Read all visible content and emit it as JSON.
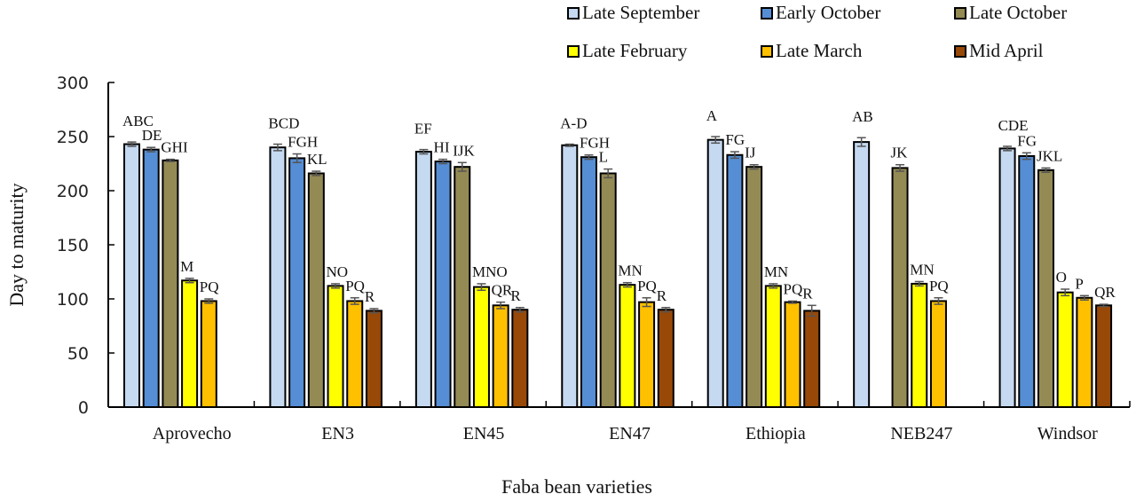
{
  "chart_data": {
    "type": "bar",
    "title": "",
    "xlabel": "Faba bean varieties",
    "ylabel": "Day to maturity",
    "ylim": [
      0,
      300
    ],
    "yticks": [
      "0",
      "50",
      "100",
      "150",
      "200",
      "250",
      "300"
    ],
    "grid": false,
    "legend_position": "top-right",
    "categories": [
      "Aprovecho",
      "EN3",
      "EN45",
      "EN47",
      "Ethiopia",
      "NEB247",
      "Windsor"
    ],
    "series": [
      {
        "name": "Late September",
        "color": "#c5d9f1",
        "values": [
          243,
          240,
          236,
          242,
          247,
          245,
          239
        ],
        "errors": [
          2,
          3,
          2,
          1,
          3,
          4,
          2
        ],
        "letters": [
          "ABC",
          "BCD",
          "EF",
          "A-D",
          "A",
          "AB",
          "CDE"
        ]
      },
      {
        "name": "Early October",
        "color": "#558ed5",
        "values": [
          238,
          230,
          227,
          231,
          233,
          null,
          232
        ],
        "errors": [
          2,
          4,
          2,
          2,
          3,
          null,
          3
        ],
        "letters": [
          "DE",
          "FGH",
          "HI",
          "FGH",
          "FG",
          "",
          "FG"
        ]
      },
      {
        "name": "Late October",
        "color": "#948a54",
        "values": [
          228,
          216,
          222,
          216,
          222,
          221,
          219
        ],
        "errors": [
          1,
          2,
          4,
          4,
          2,
          3,
          2
        ],
        "letters": [
          "GHI",
          "KL",
          "IJK",
          "L",
          "IJ",
          "JK",
          "JKL"
        ]
      },
      {
        "name": "Late February",
        "color": "#ffff00",
        "values": [
          117,
          112,
          111,
          113,
          112,
          114,
          106
        ],
        "errors": [
          2,
          2,
          3,
          2,
          2,
          2,
          3
        ],
        "letters": [
          "M",
          "NO",
          "MNO",
          "MN",
          "MN",
          "MN",
          "O"
        ]
      },
      {
        "name": "Late March",
        "color": "#ffc000",
        "values": [
          98,
          98,
          94,
          97,
          97,
          98,
          101
        ],
        "errors": [
          2,
          3,
          3,
          4,
          1,
          3,
          2
        ],
        "letters": [
          "PQ",
          "PQ",
          "QR",
          "PQ",
          "PQ",
          "PQ",
          "P"
        ]
      },
      {
        "name": "Mid April",
        "color": "#984807",
        "values": [
          null,
          89,
          90,
          90,
          89,
          null,
          94
        ],
        "errors": [
          null,
          2,
          2,
          2,
          5,
          null,
          1
        ],
        "letters": [
          "",
          "R",
          "R",
          "R",
          "R",
          "",
          "QR"
        ]
      }
    ]
  }
}
